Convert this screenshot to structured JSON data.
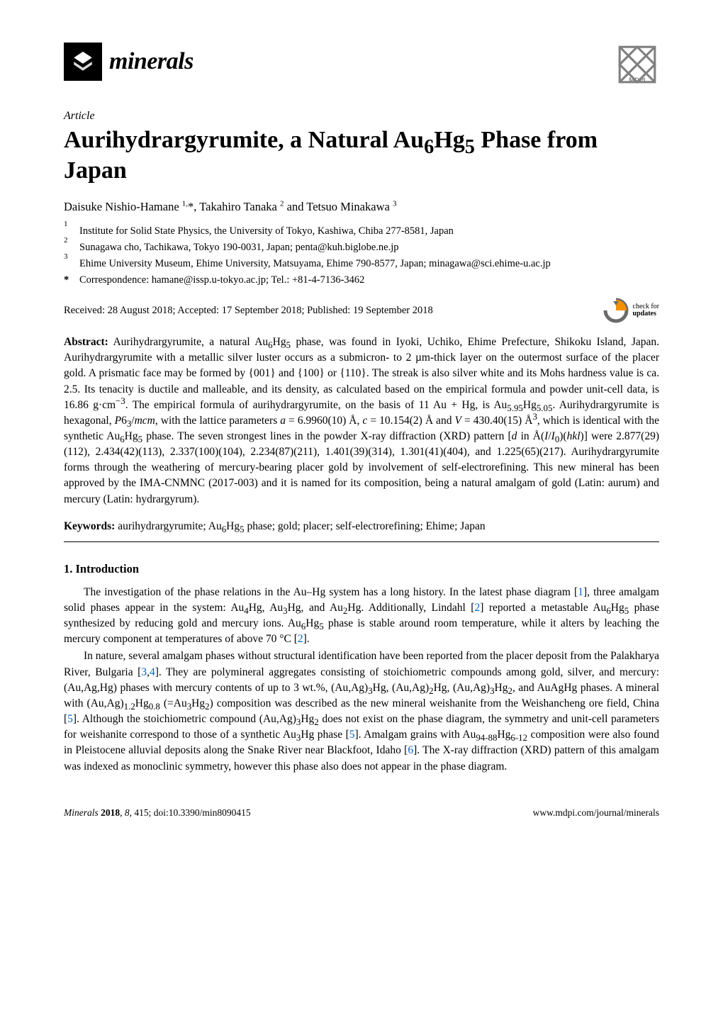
{
  "journal": {
    "name": "minerals"
  },
  "publisher": {
    "name": "MDPI"
  },
  "article_type": "Article",
  "title_html": "Aurihydrargyrumite, a Natural Au<sub>6</sub>Hg<sub>5</sub> Phase from Japan",
  "authors_html": "Daisuke Nishio-Hamane <sup>1,</sup>*, Takahiro Tanaka <sup>2</sup> and Tetsuo Minakawa <sup>3</sup>",
  "affiliations": [
    {
      "marker": "1",
      "text": "Institute for Solid State Physics, the University of Tokyo, Kashiwa, Chiba 277-8581, Japan"
    },
    {
      "marker": "2",
      "text": "Sunagawa cho, Tachikawa, Tokyo 190-0031, Japan; penta@kuh.biglobe.ne.jp"
    },
    {
      "marker": "3",
      "text": "Ehime University Museum, Ehime University, Matsuyama, Ehime 790-8577, Japan; minagawa@sci.ehime-u.ac.jp"
    }
  ],
  "correspondence": {
    "marker": "*",
    "text": "Correspondence: hamane@issp.u-tokyo.ac.jp; Tel.: +81-4-7136-3462"
  },
  "dates": "Received: 28 August 2018; Accepted: 17 September 2018; Published: 19 September 2018",
  "updates_badge": {
    "line1": "check for",
    "line2": "updates"
  },
  "abstract_label": "Abstract:",
  "abstract_html": "Aurihydrargyrumite, a natural Au<sub>6</sub>Hg<sub>5</sub> phase, was found in Iyoki, Uchiko, Ehime Prefecture, Shikoku Island, Japan. Aurihydrargyrumite with a metallic silver luster occurs as a submicron- to 2 µm-thick layer on the outermost surface of the placer gold. A prismatic face may be formed by {001} and {100} or {110}. The streak is also silver white and its Mohs hardness value is ca. 2.5. Its tenacity is ductile and malleable, and its density, as calculated based on the empirical formula and powder unit-cell data, is 16.86 g·cm<sup>−3</sup>. The empirical formula of aurihydrargyrumite, on the basis of 11 Au + Hg, is Au<sub>5.95</sub>Hg<sub>5.05</sub>. Aurihydrargyrumite is hexagonal, <i>P</i>6<sub>3</sub>/<i>mcm</i>, with the lattice parameters <i>a</i> = 6.9960(10) Å, <i>c</i> = 10.154(2) Å and <i>V</i> = 430.40(15) Å<sup>3</sup>, which is identical with the synthetic Au<sub>6</sub>Hg<sub>5</sub> phase. The seven strongest lines in the powder X-ray diffraction (XRD) pattern [<i>d</i> in Å(<i>I</i>/<i>I</i><sub>0</sub>)(<i>hkl</i>)] were 2.877(29)(112), 2.434(42)(113), 2.337(100)(104), 2.234(87)(211), 1.401(39)(314), 1.301(41)(404), and 1.225(65)(217). Aurihydrargyrumite forms through the weathering of mercury-bearing placer gold by involvement of self-electrorefining. This new mineral has been approved by the IMA-CNMNC (2017-003) and it is named for its composition, being a natural amalgam of gold (Latin: aurum) and mercury (Latin: hydrargyrum).",
  "keywords_label": "Keywords:",
  "keywords_html": "aurihydrargyrumite; Au<sub>6</sub>Hg<sub>5</sub> phase; gold; placer; self-electrorefining; Ehime; Japan",
  "section_heading": "1. Introduction",
  "paragraphs": [
    "The investigation of the phase relations in the Au–Hg system has a long history. In the latest phase diagram [<a class='ref'>1</a>], three amalgam solid phases appear in the system: Au<sub>4</sub>Hg, Au<sub>3</sub>Hg, and Au<sub>2</sub>Hg. Additionally, Lindahl [<a class='ref'>2</a>] reported a metastable Au<sub>6</sub>Hg<sub>5</sub> phase synthesized by reducing gold and mercury ions. Au<sub>6</sub>Hg<sub>5</sub> phase is stable around room temperature, while it alters by leaching the mercury component at temperatures of above 70 °C [<a class='ref'>2</a>].",
    "In nature, several amalgam phases without structural identification have been reported from the placer deposit from the Palakharya River, Bulgaria [<a class='ref'>3</a>,<a class='ref'>4</a>]. They are polymineral aggregates consisting of stoichiometric compounds among gold, silver, and mercury: (Au,Ag,Hg) phases with mercury contents of up to 3 wt.%, (Au,Ag)<sub>3</sub>Hg, (Au,Ag)<sub>2</sub>Hg, (Au,Ag)<sub>3</sub>Hg<sub>2</sub>, and AuAgHg phases. A mineral with (Au,Ag)<sub>1.2</sub>Hg<sub>0.8</sub> (=Au<sub>3</sub>Hg<sub>2</sub>) composition was described as the new mineral weishanite from the Weishancheng ore field, China [<a class='ref'>5</a>]. Although the stoichiometric compound (Au,Ag)<sub>3</sub>Hg<sub>2</sub> does not exist on the phase diagram, the symmetry and unit-cell parameters for weishanite correspond to those of a synthetic Au<sub>3</sub>Hg phase [<a class='ref'>5</a>]. Amalgam grains with Au<sub>94-88</sub>Hg<sub>6-12</sub> composition were also found in Pleistocene alluvial deposits along the Snake River near Blackfoot, Idaho [<a class='ref'>6</a>]. The X-ray diffraction (XRD) pattern of this amalgam was indexed as monoclinic symmetry, however this phase also does not appear in the phase diagram."
  ],
  "footer": {
    "left_html": "<i>Minerals</i> <b>2018</b>, <i>8</i>, 415; doi:10.3390/min8090415",
    "right": "www.mdpi.com/journal/minerals"
  },
  "colors": {
    "link": "#0066cc",
    "badge_orange": "#f39200",
    "badge_gray": "#6b6b6b",
    "mdpi_gray": "#808080",
    "text": "#000000",
    "background": "#ffffff"
  }
}
